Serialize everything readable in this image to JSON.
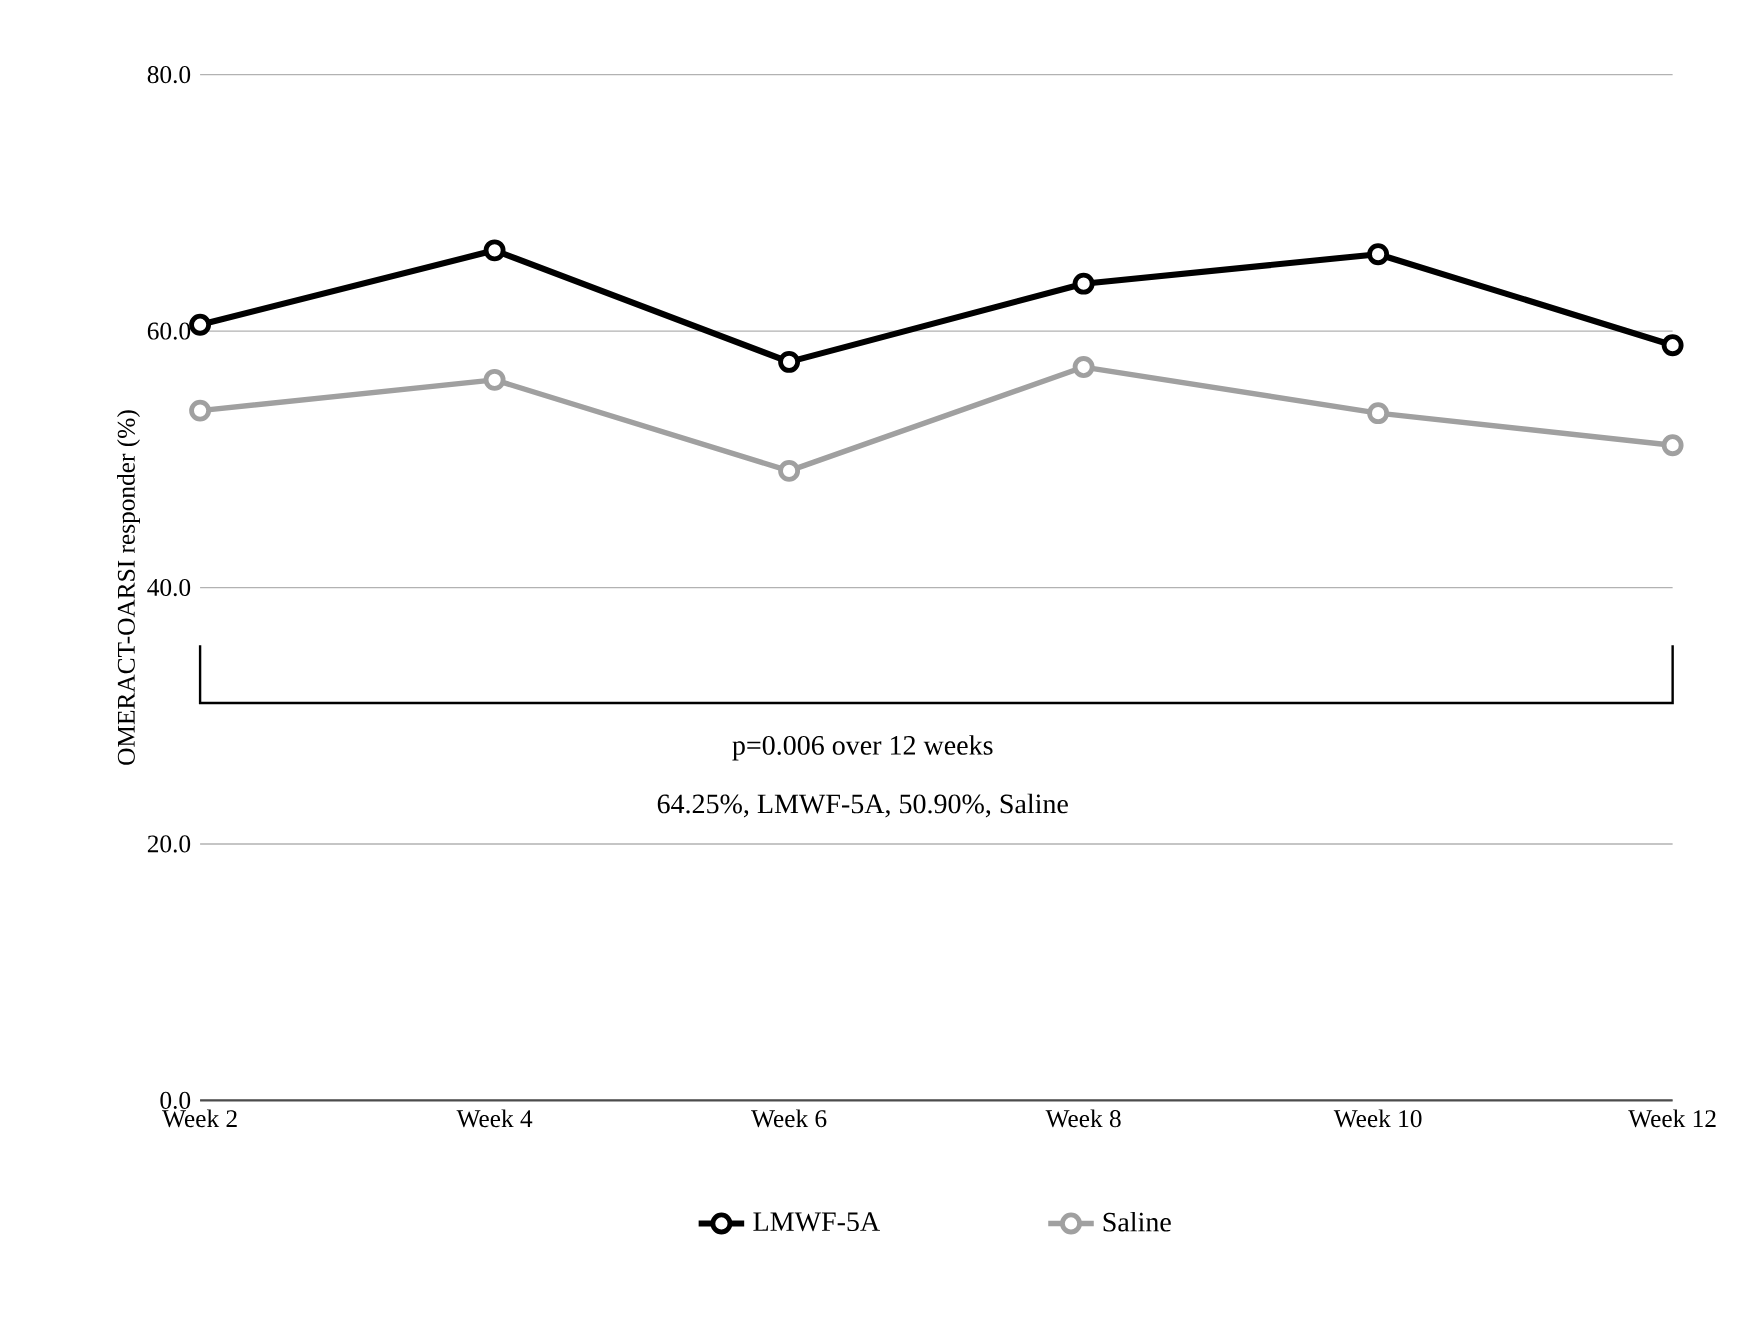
{
  "chart_data": {
    "type": "line",
    "ylabel": "OMERACT-OARSI responder (%)",
    "categories": [
      "Week 2",
      "Week 4",
      "Week 6",
      "Week 8",
      "Week 10",
      "Week 12"
    ],
    "series": [
      {
        "name": "LMWF-5A",
        "color": "#000000",
        "values": [
          60.5,
          66.3,
          57.6,
          63.7,
          66.0,
          58.9
        ]
      },
      {
        "name": "Saline",
        "color": "#a0a0a0",
        "values": [
          53.8,
          56.2,
          49.1,
          57.2,
          53.6,
          51.1
        ]
      }
    ],
    "ylim": [
      0,
      80
    ],
    "yticks": [
      {
        "value": 0,
        "label": "0.0"
      },
      {
        "value": 20,
        "label": "20.0"
      },
      {
        "value": 40,
        "label": "40.0"
      },
      {
        "value": 60,
        "label": "60.0"
      },
      {
        "value": 80,
        "label": "80.0"
      }
    ],
    "annotations": [
      "p=0.006 over 12 weeks",
      "64.25%, LMWF-5A, 50.90%, Saline"
    ],
    "grid": "y",
    "legend": "bottom",
    "marker": "circle",
    "line_style": "solid"
  }
}
